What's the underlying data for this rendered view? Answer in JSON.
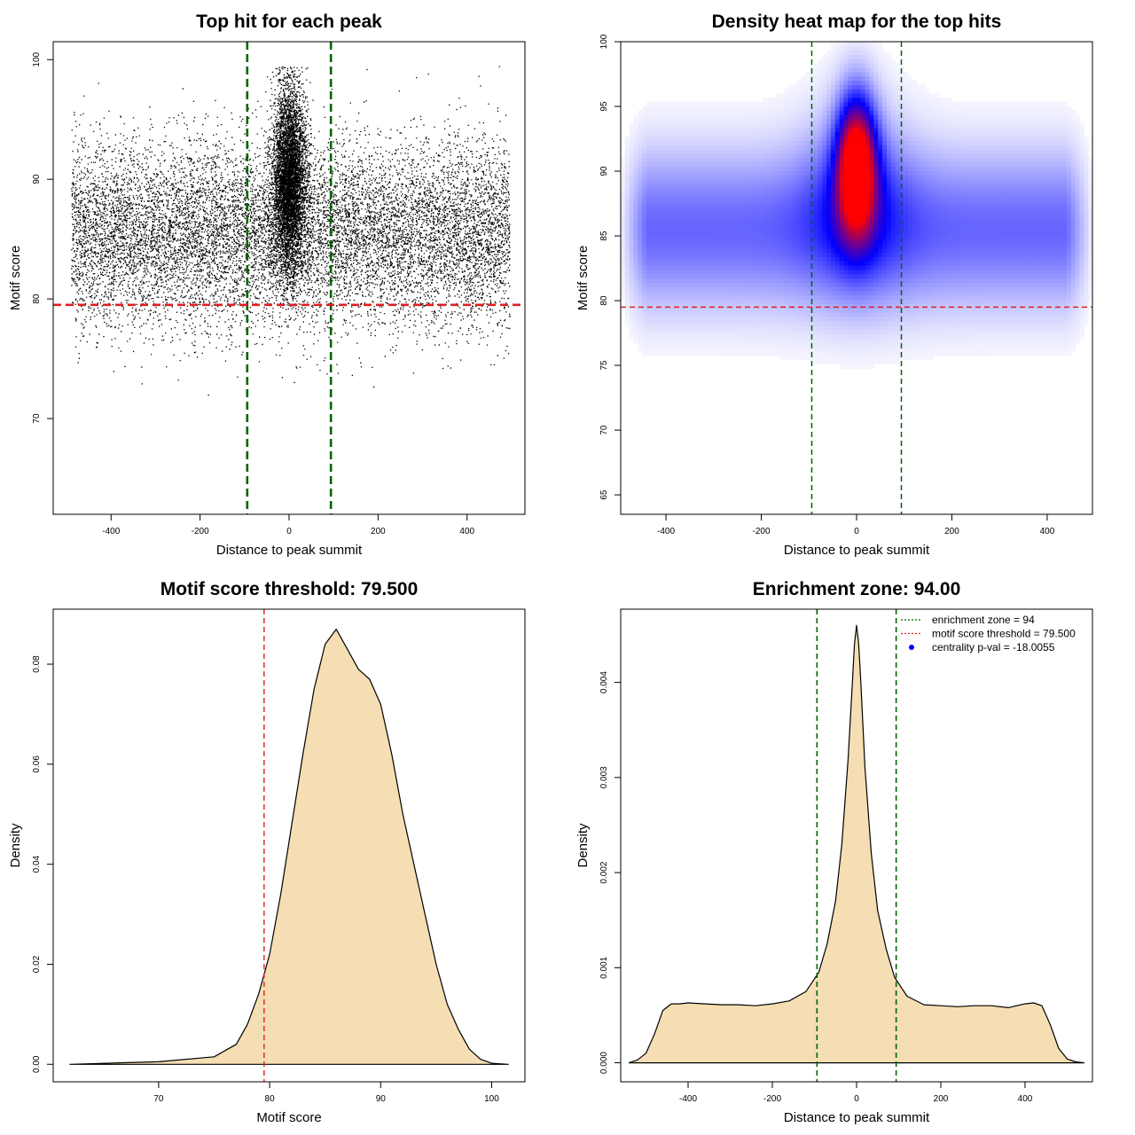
{
  "colors": {
    "enrichment_line": "#006400",
    "threshold_line": "#e02020",
    "density_fill": "#f5deb3",
    "scatter_point": "#000000",
    "heat_low": "#ffffff",
    "heat_mid": "#0000ff",
    "heat_high": "#ff0000",
    "legend_point": "#0000ff"
  },
  "chart_data": [
    {
      "type": "scatter",
      "title": "Top hit for each peak",
      "xlabel": "Distance to peak summit",
      "ylabel": "Motif score",
      "xlim": [
        -530,
        530
      ],
      "ylim": [
        62,
        101.5
      ],
      "xticks": [
        "-400",
        "-200",
        "0",
        "200",
        "400"
      ],
      "xtick_values": [
        -400,
        -200,
        0,
        200,
        400
      ],
      "yticks": [
        "70",
        "80",
        "90",
        "100"
      ],
      "ytick_values": [
        70,
        80,
        90,
        100
      ],
      "vlines": [
        -94,
        94
      ],
      "hline": 79.5,
      "distribution": {
        "background_x_range": [
          -490,
          495
        ],
        "background_score_mean": 85.5,
        "background_score_sd": 3.8,
        "central_score_mean": 90.0,
        "central_score_sd": 3.8,
        "central_x_sd": 18,
        "central_fraction": 0.33,
        "score_cap": 98,
        "n_points": 18000
      },
      "grid": false,
      "legend": null
    },
    {
      "type": "heatmap",
      "title": "Density heat map for the top hits",
      "xlabel": "Distance to peak summit",
      "ylabel": "Motif score",
      "xlim": [
        -495,
        495
      ],
      "ylim": [
        63.5,
        100
      ],
      "xticks": [
        "-400",
        "-200",
        "0",
        "200",
        "400"
      ],
      "xtick_values": [
        -400,
        -200,
        0,
        200,
        400
      ],
      "yticks": [
        "65",
        "70",
        "75",
        "80",
        "85",
        "90",
        "95",
        "100"
      ],
      "ytick_values": [
        65,
        70,
        75,
        80,
        85,
        90,
        95,
        100
      ],
      "vlines": [
        -94,
        94
      ],
      "hline": 79.5,
      "density_peak": {
        "x": 0,
        "score": 90.5
      },
      "grid": false,
      "legend": null
    },
    {
      "type": "area",
      "title": "Motif score threshold: 79.500",
      "xlabel": "Motif score",
      "ylabel": "Density",
      "xlim": [
        60.5,
        103
      ],
      "ylim": [
        -0.0035,
        0.091
      ],
      "xticks": [
        "70",
        "80",
        "90",
        "100"
      ],
      "xtick_values": [
        70,
        80,
        90,
        100
      ],
      "yticks": [
        "0.00",
        "0.02",
        "0.04",
        "0.06",
        "0.08"
      ],
      "ytick_values": [
        0,
        0.02,
        0.04,
        0.06,
        0.08
      ],
      "vline": 79.5,
      "x": [
        62,
        70,
        75,
        77,
        78,
        79,
        80,
        81,
        82,
        83,
        84,
        85,
        86,
        87,
        88,
        89,
        90,
        91,
        92,
        93,
        94,
        95,
        96,
        97,
        98,
        99,
        100,
        101.5
      ],
      "y": [
        0,
        0.0005,
        0.0015,
        0.004,
        0.008,
        0.014,
        0.022,
        0.034,
        0.048,
        0.062,
        0.075,
        0.084,
        0.087,
        0.083,
        0.079,
        0.077,
        0.072,
        0.062,
        0.05,
        0.04,
        0.03,
        0.02,
        0.012,
        0.007,
        0.003,
        0.001,
        0.0002,
        0
      ],
      "grid": false,
      "legend": null
    },
    {
      "type": "area",
      "title": "Enrichment zone: 94.00",
      "xlabel": "Distance to peak summit",
      "ylabel": "Density",
      "xlim": [
        -560,
        560
      ],
      "ylim": [
        -0.0002,
        0.00477
      ],
      "xticks": [
        "-400",
        "-200",
        "0",
        "200",
        "400"
      ],
      "xtick_values": [
        -400,
        -200,
        0,
        200,
        400
      ],
      "yticks": [
        "0.000",
        "0.001",
        "0.002",
        "0.003",
        "0.004"
      ],
      "ytick_values": [
        0,
        0.001,
        0.002,
        0.003,
        0.004
      ],
      "vlines": [
        -94,
        94
      ],
      "x": [
        -540,
        -520,
        -500,
        -480,
        -460,
        -440,
        -420,
        -400,
        -360,
        -320,
        -280,
        -240,
        -200,
        -160,
        -120,
        -90,
        -70,
        -50,
        -35,
        -20,
        -10,
        -5,
        0,
        5,
        10,
        20,
        35,
        50,
        70,
        90,
        120,
        160,
        200,
        240,
        280,
        320,
        360,
        400,
        420,
        440,
        460,
        480,
        500,
        520,
        540
      ],
      "y": [
        0,
        3e-05,
        0.0001,
        0.0003,
        0.00055,
        0.00062,
        0.00062,
        0.00063,
        0.00062,
        0.00061,
        0.00061,
        0.0006,
        0.00062,
        0.00065,
        0.00075,
        0.00095,
        0.00125,
        0.0017,
        0.0023,
        0.0032,
        0.004,
        0.0044,
        0.0046,
        0.0044,
        0.004,
        0.0031,
        0.0022,
        0.0016,
        0.0012,
        0.0009,
        0.0007,
        0.00061,
        0.0006,
        0.00059,
        0.0006,
        0.0006,
        0.00058,
        0.00062,
        0.00063,
        0.0006,
        0.0004,
        0.00015,
        4e-05,
        1e-05,
        0
      ],
      "legend": {
        "position": "top-right",
        "entries": [
          {
            "label": "enrichment zone = 94",
            "symbol": "dotted-line",
            "color": "#006400"
          },
          {
            "label": "motif score threshold = 79.500",
            "symbol": "dotted-line",
            "color": "#e02020"
          },
          {
            "label": "centrality p-val = -18.0055",
            "symbol": "point",
            "color": "#0000ff"
          }
        ]
      },
      "grid": false
    }
  ]
}
